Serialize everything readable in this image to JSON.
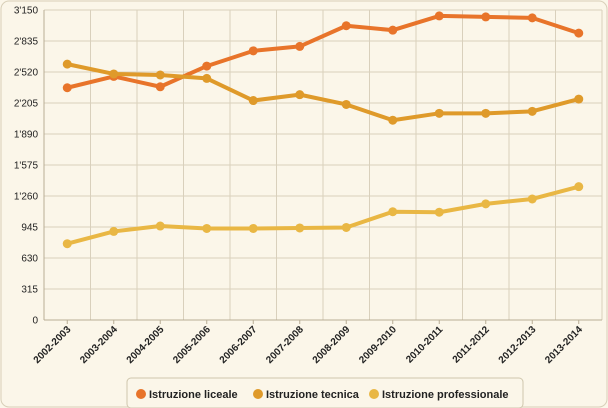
{
  "chart_data": {
    "type": "line",
    "title": "",
    "xlabel": "",
    "ylabel": "",
    "ylim": [
      0,
      3150
    ],
    "yticks": [
      0,
      315,
      630,
      945,
      1260,
      1575,
      1890,
      2205,
      2520,
      2835,
      3150
    ],
    "ytick_labels": [
      "0",
      "315",
      "630",
      "945",
      "1'260",
      "1'575",
      "1'890",
      "2'205",
      "2'520",
      "2'835",
      "3'150"
    ],
    "categories": [
      "2002-2003",
      "2003-2004",
      "2004-2005",
      "2005-2006",
      "2006-2007",
      "2007-2008",
      "2008-2009",
      "2009-2010",
      "2010-2011",
      "2011-2012",
      "2012-2013",
      "2013-2014"
    ],
    "grid": "horizontal",
    "legend_position": "bottom",
    "series": [
      {
        "name": "Istruzione liceale",
        "color": "#e8742a",
        "values": [
          2360,
          2475,
          2370,
          2580,
          2735,
          2780,
          2990,
          2945,
          3090,
          3080,
          3070,
          2915
        ]
      },
      {
        "name": "Istruzione tecnica",
        "color": "#df9a2a",
        "values": [
          2600,
          2500,
          2490,
          2455,
          2230,
          2290,
          2190,
          2030,
          2100,
          2100,
          2120,
          2245
        ]
      },
      {
        "name": "Istruzione professionale",
        "color": "#e9b744",
        "values": [
          775,
          900,
          955,
          930,
          930,
          935,
          940,
          1100,
          1095,
          1180,
          1230,
          1355
        ]
      }
    ]
  }
}
